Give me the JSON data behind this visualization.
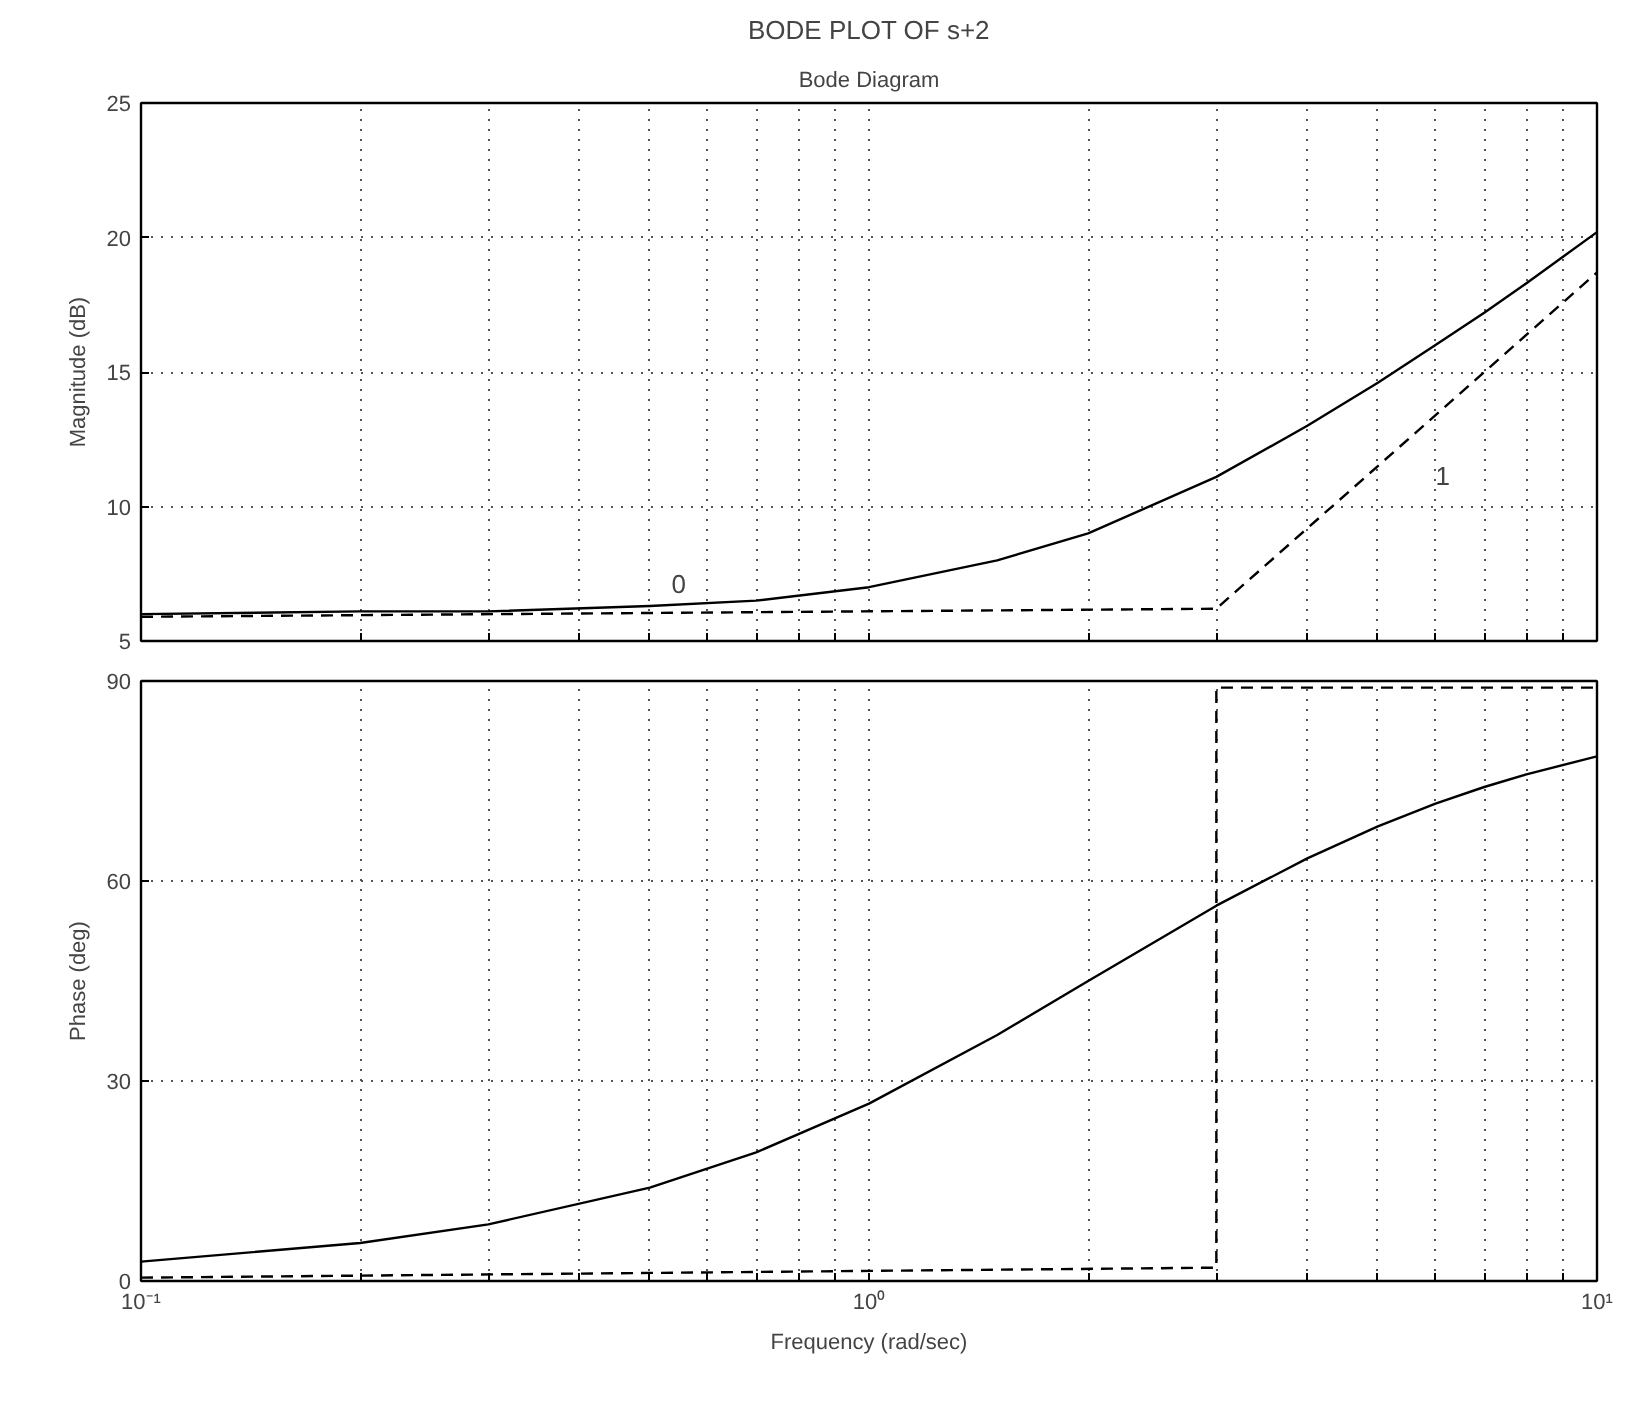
{
  "chart_data": [
    {
      "type": "line",
      "title": "BODE PLOT OF s+2",
      "subtitle": "Bode Diagram",
      "ylabel": "Magnitude (dB)",
      "log": "x",
      "grid": true,
      "tick_labels": "y",
      "xlim": [
        0.1,
        10
      ],
      "xticks": [
        {
          "value": 0.1,
          "label": null
        },
        {
          "value": 0.2,
          "label": null
        },
        {
          "value": 0.3,
          "label": null
        },
        {
          "value": 0.4,
          "label": null
        },
        {
          "value": 0.5,
          "label": null
        },
        {
          "value": 0.6,
          "label": null
        },
        {
          "value": 0.7,
          "label": null
        },
        {
          "value": 0.8,
          "label": null
        },
        {
          "value": 0.9,
          "label": null
        },
        {
          "value": 1,
          "label": null
        },
        {
          "value": 2,
          "label": null
        },
        {
          "value": 3,
          "label": null
        },
        {
          "value": 4,
          "label": null
        },
        {
          "value": 5,
          "label": null
        },
        {
          "value": 6,
          "label": null
        },
        {
          "value": 7,
          "label": null
        },
        {
          "value": 8,
          "label": null
        },
        {
          "value": 9,
          "label": null
        },
        {
          "value": 10,
          "label": null
        }
      ],
      "ylim": [
        5,
        25
      ],
      "yticks": [
        5,
        10,
        15,
        20,
        25
      ],
      "series": [
        {
          "color": "#000000",
          "line_style": "solid",
          "x": [
            0.1,
            0.2,
            0.3,
            0.5,
            0.7,
            1,
            1.5,
            2,
            3,
            4,
            5,
            6,
            7,
            8,
            10
          ],
          "values": [
            6.0,
            6.1,
            6.1,
            6.3,
            6.5,
            7.0,
            8.0,
            9.0,
            11.1,
            13.0,
            14.6,
            16.0,
            17.2,
            18.3,
            20.2
          ]
        },
        {
          "color": "#000000",
          "line_style": "dashed",
          "x": [
            0.1,
            3,
            10
          ],
          "values": [
            5.9,
            6.2,
            18.7
          ]
        }
      ],
      "annotations": [
        "0",
        "1"
      ]
    },
    {
      "type": "line",
      "xlabel": "Frequency (rad/sec)",
      "ylabel": "Phase (deg)",
      "log": "x",
      "grid": true,
      "xlim": [
        0.1,
        10
      ],
      "xticks": [
        {
          "value": 0.1,
          "label": "10⁻¹"
        },
        {
          "value": 0.2,
          "label": null
        },
        {
          "value": 0.3,
          "label": null
        },
        {
          "value": 0.4,
          "label": null
        },
        {
          "value": 0.5,
          "label": null
        },
        {
          "value": 0.6,
          "label": null
        },
        {
          "value": 0.7,
          "label": null
        },
        {
          "value": 0.8,
          "label": null
        },
        {
          "value": 0.9,
          "label": null
        },
        {
          "value": 1,
          "label": "10⁰"
        },
        {
          "value": 2,
          "label": null
        },
        {
          "value": 3,
          "label": null
        },
        {
          "value": 4,
          "label": null
        },
        {
          "value": 5,
          "label": null
        },
        {
          "value": 6,
          "label": null
        },
        {
          "value": 7,
          "label": null
        },
        {
          "value": 8,
          "label": null
        },
        {
          "value": 9,
          "label": null
        },
        {
          "value": 10,
          "label": "10¹"
        }
      ],
      "ylim": [
        0,
        90
      ],
      "yticks": [
        0,
        30,
        60,
        90
      ],
      "series": [
        {
          "color": "#000000",
          "line_style": "solid",
          "x": [
            0.1,
            0.2,
            0.3,
            0.5,
            0.7,
            1,
            1.5,
            2,
            3,
            4,
            5,
            6,
            7,
            8,
            10
          ],
          "values": [
            2.9,
            5.7,
            8.5,
            14.0,
            19.3,
            26.6,
            36.9,
            45.0,
            56.3,
            63.4,
            68.2,
            71.6,
            74.1,
            76.0,
            78.7
          ]
        },
        {
          "color": "#000000",
          "line_style": "dashed",
          "x": [
            0.1,
            3,
            3,
            10
          ],
          "values": [
            0.5,
            2,
            89,
            89
          ]
        }
      ]
    }
  ]
}
